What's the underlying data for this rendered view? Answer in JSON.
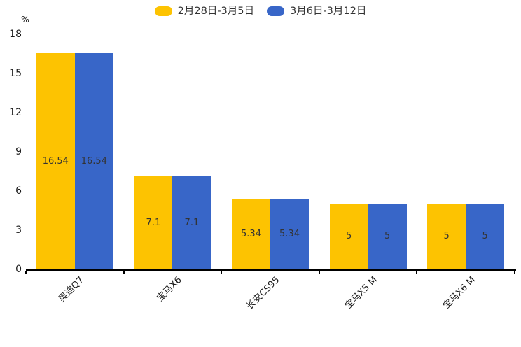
{
  "chart_data": {
    "type": "bar",
    "title": "",
    "xlabel": "",
    "ylabel": "%",
    "categories": [
      "奥迪Q7",
      "宝马X6",
      "长安CS95",
      "宝马X5 M",
      "宝马X6 M"
    ],
    "series": [
      {
        "name": "2月28日-3月5日",
        "color": "#FDC301",
        "values": [
          16.54,
          7.1,
          5.34,
          5,
          5
        ]
      },
      {
        "name": "3月6日-3月12日",
        "color": "#3866C8",
        "values": [
          16.54,
          7.1,
          5.34,
          5,
          5
        ]
      }
    ],
    "value_labels": [
      [
        "16.54",
        "7.1",
        "5.34",
        "5",
        "5"
      ],
      [
        "16.54",
        "7.1",
        "5.34",
        "5",
        "5"
      ]
    ],
    "ylim": [
      0,
      18
    ],
    "y_ticks": [
      0,
      3,
      6,
      9,
      12,
      15,
      18
    ],
    "grid": false,
    "legend_position": "top-center",
    "colors": {
      "axis": "#000000",
      "tick_label": "#1a1a1a",
      "value_label": "#333333",
      "legend_text": "#333333",
      "background": "#ffffff"
    }
  }
}
